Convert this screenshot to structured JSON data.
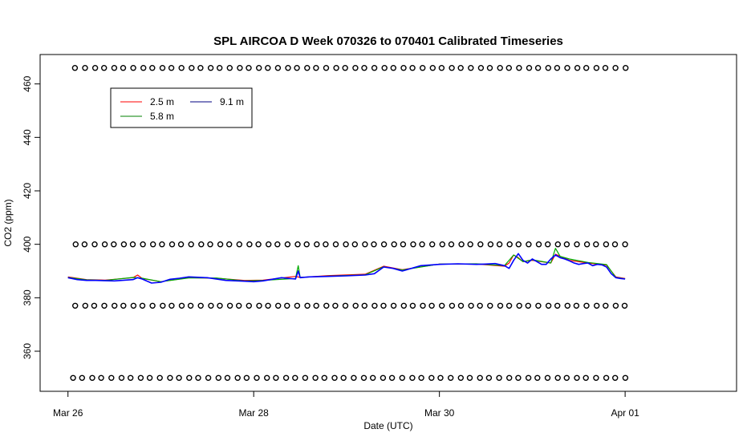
{
  "chart_data": {
    "type": "line",
    "title": "SPL AIRCOA D  Week 070326 to 070401  Calibrated Timeseries",
    "xlabel": "Date (UTC)",
    "ylabel": "CO2 (ppm)",
    "x_unit": "days since Mar 26 00:00 UTC",
    "xlim": [
      -0.3,
      7.2
    ],
    "ylim": [
      345,
      471
    ],
    "x_ticks": [
      {
        "value": 0,
        "label": "Mar 26"
      },
      {
        "value": 2,
        "label": "Mar 28"
      },
      {
        "value": 4,
        "label": "Mar 30"
      },
      {
        "value": 6,
        "label": "Apr 01"
      }
    ],
    "y_ticks": [
      360,
      380,
      400,
      420,
      440,
      460
    ],
    "grid": false,
    "legend": {
      "placement": "top-left",
      "entries": [
        {
          "label": "2.5 m",
          "color": "#ff0000"
        },
        {
          "label": "9.1 m",
          "color": "#000080"
        },
        {
          "label": "5.8 m",
          "color": "#008000"
        }
      ]
    },
    "series": [
      {
        "name": "9.1 m",
        "color": "#0000ff",
        "x": [
          0.0,
          0.1,
          0.2,
          0.3,
          0.5,
          0.7,
          0.75,
          0.8,
          0.9,
          1.0,
          1.1,
          1.2,
          1.3,
          1.5,
          1.7,
          1.9,
          2.0,
          2.1,
          2.3,
          2.45,
          2.48,
          2.5,
          2.6,
          2.8,
          3.0,
          3.2,
          3.3,
          3.4,
          3.5,
          3.6,
          3.8,
          4.0,
          4.2,
          4.4,
          4.5,
          4.6,
          4.7,
          4.75,
          4.8,
          4.85,
          4.9,
          4.95,
          5.0,
          5.05,
          5.1,
          5.15,
          5.2,
          5.25,
          5.3,
          5.35,
          5.4,
          5.45,
          5.5,
          5.55,
          5.6,
          5.65,
          5.7,
          5.75,
          5.8,
          5.85,
          5.9,
          5.95,
          6.0
        ],
        "values": [
          387.5,
          386.8,
          386.5,
          386.5,
          386.3,
          386.8,
          387.5,
          387.0,
          385.5,
          385.8,
          386.9,
          387.3,
          387.8,
          387.5,
          386.5,
          386.2,
          386.0,
          386.3,
          387.5,
          387.0,
          390.0,
          387.5,
          387.8,
          388.0,
          388.2,
          388.5,
          389.0,
          391.5,
          391.0,
          390.0,
          392.0,
          392.5,
          392.7,
          392.5,
          392.6,
          392.8,
          392.0,
          391.0,
          394.0,
          396.5,
          394.0,
          393.0,
          394.5,
          393.5,
          392.5,
          392.5,
          394.5,
          396.0,
          395.0,
          394.5,
          393.8,
          393.0,
          392.5,
          392.8,
          393.0,
          392.0,
          392.5,
          392.3,
          391.5,
          389.0,
          387.5,
          387.2,
          387.0
        ]
      },
      {
        "name": "2.5 m",
        "color": "#ff0000",
        "x": [
          0.0,
          0.2,
          0.4,
          0.7,
          0.75,
          0.8,
          1.0,
          1.3,
          1.6,
          1.9,
          2.1,
          2.45,
          2.5,
          2.8,
          3.2,
          3.4,
          3.6,
          4.0,
          4.4,
          4.7,
          4.75,
          4.8,
          4.85,
          4.9,
          5.0,
          5.2,
          5.25,
          5.4,
          5.6,
          5.8,
          5.9,
          6.0
        ],
        "values": [
          387.8,
          386.8,
          386.6,
          387.5,
          388.5,
          387.2,
          386.0,
          387.5,
          387.3,
          386.5,
          386.6,
          388.0,
          387.6,
          388.3,
          388.8,
          391.8,
          390.5,
          392.6,
          392.6,
          391.8,
          393.0,
          396.0,
          395.0,
          393.5,
          394.0,
          393.0,
          396.3,
          394.0,
          393.0,
          392.2,
          387.8,
          387.2
        ]
      },
      {
        "name": "5.8 m",
        "color": "#00aa00",
        "x": [
          0.0,
          0.2,
          0.4,
          0.7,
          0.8,
          1.0,
          1.3,
          1.6,
          1.9,
          2.1,
          2.45,
          2.48,
          2.5,
          2.8,
          3.2,
          3.4,
          3.6,
          4.0,
          4.4,
          4.7,
          4.8,
          4.9,
          5.0,
          5.2,
          5.25,
          5.3,
          5.4,
          5.6,
          5.8,
          5.9,
          6.0
        ],
        "values": [
          387.6,
          386.7,
          386.5,
          387.6,
          387.3,
          386.0,
          387.4,
          387.4,
          386.3,
          386.5,
          387.2,
          392.0,
          387.6,
          388.1,
          388.6,
          391.6,
          390.4,
          392.6,
          392.7,
          392.0,
          396.0,
          393.5,
          394.2,
          393.0,
          398.5,
          395.5,
          394.5,
          393.2,
          392.4,
          387.6,
          387.1
        ]
      }
    ],
    "marker_rows": [
      {
        "name": "marker row 466",
        "y": 466,
        "x_start": 0.08,
        "x_end": 6.0,
        "count": 58
      },
      {
        "name": "marker row 400",
        "y": 400,
        "x_start": 0.08,
        "x_end": 6.0,
        "count": 58
      },
      {
        "name": "marker row 377",
        "y": 377,
        "x_start": 0.08,
        "x_end": 6.0,
        "count": 58
      },
      {
        "name": "marker row 350",
        "y": 350,
        "x_start": 0.05,
        "x_end": 6.0,
        "count": 58
      }
    ]
  }
}
